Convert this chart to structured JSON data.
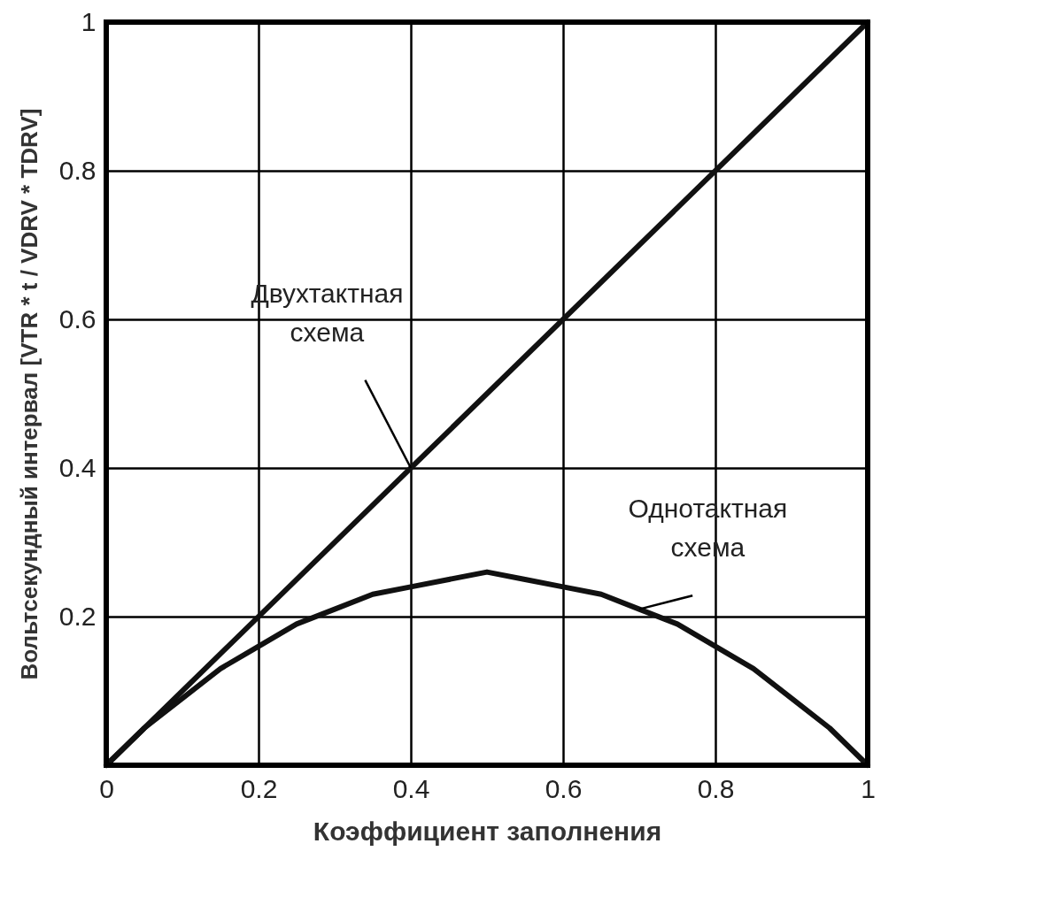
{
  "chart_data": {
    "type": "line",
    "xlabel": "Коэффициент заполнения",
    "ylabel": "Вольтсекундный интервал [VTR * t / VDRV * TDRV]",
    "xlim": [
      0,
      1
    ],
    "ylim": [
      0,
      1
    ],
    "xticks": [
      0,
      0.2,
      0.4,
      0.6,
      0.8,
      1
    ],
    "yticks": [
      {
        "value": 0,
        "label": null
      },
      0.2,
      0.4,
      0.6,
      0.8,
      1
    ],
    "grid": true,
    "legend": false,
    "marker": "none",
    "line_style": "solid",
    "series": [
      {
        "color": "#111111",
        "x": [
          0,
          1
        ],
        "values": [
          0,
          1
        ]
      },
      {
        "color": "#111111",
        "x": [
          0,
          0.05,
          0.1,
          0.15,
          0.2,
          0.25,
          0.3,
          0.35,
          0.4,
          0.45,
          0.5,
          0.55,
          0.6,
          0.65,
          0.7,
          0.75,
          0.8,
          0.85,
          0.9,
          0.95,
          1
        ],
        "values": [
          0,
          0.05,
          0.09,
          0.13,
          0.16,
          0.19,
          0.21,
          0.23,
          0.24,
          0.25,
          0.26,
          0.25,
          0.24,
          0.23,
          0.21,
          0.19,
          0.16,
          0.13,
          0.09,
          0.05,
          0
        ]
      }
    ],
    "annotations": [
      {
        "text": "Двухтактная схема",
        "x": 0.4,
        "y": 0.4
      },
      {
        "text": "Однотактная схема",
        "x": 0.7,
        "y": 0.21
      }
    ]
  }
}
